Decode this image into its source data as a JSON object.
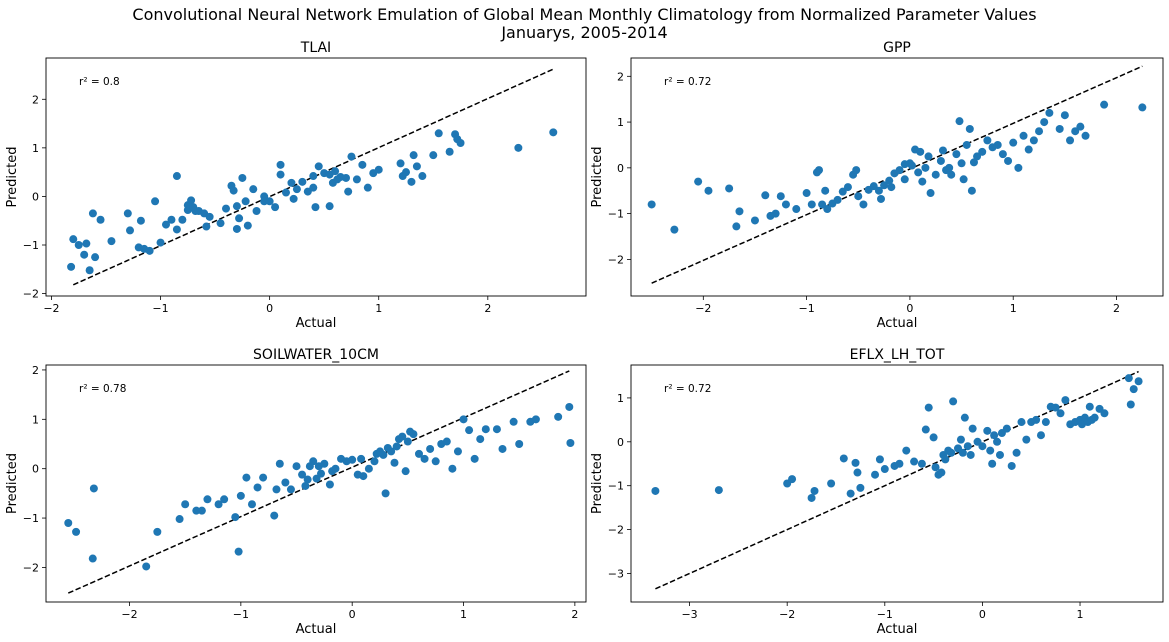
{
  "figure": {
    "title_line1": "Convolutional Neural Network Emulation of Global Mean Monthly Climatology from Normalized Parameter Values",
    "title_line2": "Januarys, 2005-2014"
  },
  "colors": {
    "points": "#1f77b4",
    "reference_line": "#000000"
  },
  "chart_data": [
    {
      "type": "scatter",
      "title": "TLAI",
      "xlabel": "Actual",
      "ylabel": "Predicted",
      "annotation": "r² = 0.8",
      "xlim": [
        -2.05,
        2.9
      ],
      "ylim": [
        -2.05,
        2.85
      ],
      "xticks": [
        -2,
        -1,
        0,
        1,
        2
      ],
      "yticks": [
        -2,
        -1,
        0,
        1,
        2
      ],
      "reference_line": {
        "style": "dashed",
        "from": [
          -1.8,
          -1.82
        ],
        "to": [
          2.6,
          2.62
        ]
      },
      "x": [
        -1.82,
        -1.8,
        -1.75,
        -1.7,
        -1.68,
        -1.65,
        -1.62,
        -1.6,
        -1.55,
        -1.45,
        -1.3,
        -1.28,
        -1.2,
        -1.18,
        -1.15,
        -1.1,
        -1.05,
        -1.0,
        -0.95,
        -0.9,
        -0.85,
        -0.85,
        -0.8,
        -0.75,
        -0.75,
        -0.72,
        -0.7,
        -0.68,
        -0.65,
        -0.6,
        -0.58,
        -0.55,
        -0.45,
        -0.4,
        -0.35,
        -0.33,
        -0.3,
        -0.3,
        -0.28,
        -0.25,
        -0.22,
        -0.2,
        -0.15,
        -0.12,
        -0.05,
        -0.05,
        0.0,
        0.05,
        0.1,
        0.1,
        0.15,
        0.2,
        0.22,
        0.25,
        0.3,
        0.35,
        0.4,
        0.4,
        0.42,
        0.45,
        0.5,
        0.55,
        0.55,
        0.58,
        0.6,
        0.62,
        0.65,
        0.7,
        0.72,
        0.75,
        0.8,
        0.85,
        0.9,
        0.95,
        1.0,
        1.2,
        1.22,
        1.25,
        1.3,
        1.32,
        1.35,
        1.4,
        1.5,
        1.55,
        1.65,
        1.7,
        1.72,
        1.75,
        2.28,
        2.6
      ],
      "y": [
        -1.45,
        -0.88,
        -1.0,
        -1.2,
        -0.97,
        -1.52,
        -0.35,
        -1.25,
        -0.48,
        -0.92,
        -0.35,
        -0.7,
        -1.05,
        -0.5,
        -1.08,
        -1.12,
        -0.1,
        -0.95,
        -0.58,
        -0.48,
        0.42,
        -0.68,
        -0.48,
        -0.28,
        -0.18,
        -0.08,
        -0.22,
        -0.3,
        -0.3,
        -0.35,
        -0.62,
        -0.42,
        -0.55,
        -0.25,
        0.22,
        0.12,
        -0.67,
        -0.2,
        -0.45,
        0.38,
        -0.1,
        -0.6,
        0.15,
        -0.3,
        0.0,
        -0.1,
        -0.1,
        -0.22,
        0.45,
        0.65,
        0.08,
        0.28,
        -0.05,
        0.15,
        0.3,
        0.1,
        0.18,
        0.42,
        -0.22,
        0.62,
        0.48,
        -0.2,
        0.45,
        0.28,
        0.52,
        0.35,
        0.4,
        0.38,
        0.1,
        0.82,
        0.35,
        0.65,
        0.18,
        0.48,
        0.55,
        0.68,
        0.42,
        0.5,
        0.3,
        0.85,
        0.62,
        0.42,
        0.85,
        1.3,
        0.92,
        1.28,
        1.18,
        1.1,
        1.0,
        1.32
      ]
    },
    {
      "type": "scatter",
      "title": "GPP",
      "xlabel": "Actual",
      "ylabel": "Predicted",
      "annotation": "r² = 0.72",
      "xlim": [
        -2.7,
        2.45
      ],
      "ylim": [
        -2.8,
        2.4
      ],
      "xticks": [
        -2,
        -1,
        0,
        1,
        2
      ],
      "yticks": [
        -2,
        -1,
        0,
        1,
        2
      ],
      "reference_line": {
        "style": "dashed",
        "from": [
          -2.5,
          -2.52
        ],
        "to": [
          2.25,
          2.22
        ]
      },
      "x": [
        -2.5,
        -2.28,
        -2.05,
        -1.95,
        -1.75,
        -1.68,
        -1.65,
        -1.5,
        -1.4,
        -1.35,
        -1.3,
        -1.25,
        -1.2,
        -1.1,
        -1.0,
        -0.95,
        -0.9,
        -0.88,
        -0.85,
        -0.82,
        -0.8,
        -0.75,
        -0.7,
        -0.65,
        -0.6,
        -0.55,
        -0.52,
        -0.5,
        -0.45,
        -0.4,
        -0.35,
        -0.3,
        -0.28,
        -0.25,
        -0.2,
        -0.18,
        -0.15,
        -0.1,
        -0.05,
        -0.05,
        0.0,
        0.02,
        0.05,
        0.08,
        0.1,
        0.12,
        0.15,
        0.18,
        0.2,
        0.25,
        0.3,
        0.32,
        0.35,
        0.38,
        0.4,
        0.45,
        0.48,
        0.5,
        0.52,
        0.55,
        0.58,
        0.6,
        0.62,
        0.65,
        0.7,
        0.75,
        0.8,
        0.85,
        0.9,
        0.95,
        1.0,
        1.05,
        1.1,
        1.15,
        1.2,
        1.25,
        1.3,
        1.35,
        1.45,
        1.5,
        1.55,
        1.6,
        1.65,
        1.7,
        1.88,
        2.25
      ],
      "y": [
        -0.8,
        -1.35,
        -0.3,
        -0.5,
        -0.45,
        -1.28,
        -0.95,
        -1.15,
        -0.6,
        -1.05,
        -1.0,
        -0.62,
        -0.8,
        -0.9,
        -0.55,
        -0.8,
        -0.1,
        -0.05,
        -0.8,
        -0.5,
        -0.9,
        -0.78,
        -0.7,
        -0.52,
        -0.42,
        -0.15,
        -0.05,
        -0.62,
        -0.8,
        -0.48,
        -0.4,
        -0.5,
        -0.68,
        -0.38,
        -0.28,
        -0.42,
        -0.12,
        -0.05,
        -0.25,
        0.08,
        0.1,
        0.05,
        0.4,
        -0.1,
        0.35,
        -0.3,
        0.0,
        0.25,
        -0.55,
        -0.15,
        0.15,
        0.38,
        -0.05,
        0.0,
        -0.15,
        0.3,
        1.02,
        0.1,
        -0.25,
        0.5,
        0.85,
        -0.5,
        0.12,
        0.25,
        0.35,
        0.6,
        0.45,
        0.5,
        0.3,
        0.15,
        0.55,
        0.0,
        0.7,
        0.4,
        0.6,
        0.8,
        1.0,
        1.2,
        0.85,
        1.15,
        0.6,
        0.8,
        0.9,
        0.7,
        1.38,
        1.32
      ]
    },
    {
      "type": "scatter",
      "title": "SOILWATER_10CM",
      "xlabel": "Actual",
      "ylabel": "Predicted",
      "annotation": "r² = 0.78",
      "xlim": [
        -2.75,
        2.1
      ],
      "ylim": [
        -2.7,
        2.1
      ],
      "xticks": [
        -2,
        -1,
        0,
        1,
        2
      ],
      "yticks": [
        -2,
        -1,
        0,
        1,
        2
      ],
      "reference_line": {
        "style": "dashed",
        "from": [
          -2.55,
          -2.52
        ],
        "to": [
          1.95,
          1.98
        ]
      },
      "x": [
        -2.55,
        -2.48,
        -2.33,
        -2.32,
        -1.85,
        -1.75,
        -1.55,
        -1.5,
        -1.4,
        -1.35,
        -1.3,
        -1.2,
        -1.15,
        -1.05,
        -1.02,
        -1.0,
        -0.95,
        -0.9,
        -0.85,
        -0.8,
        -0.7,
        -0.68,
        -0.65,
        -0.6,
        -0.55,
        -0.5,
        -0.45,
        -0.42,
        -0.4,
        -0.38,
        -0.35,
        -0.32,
        -0.3,
        -0.28,
        -0.25,
        -0.2,
        -0.18,
        -0.15,
        -0.1,
        -0.05,
        0.0,
        0.05,
        0.08,
        0.1,
        0.15,
        0.2,
        0.22,
        0.25,
        0.28,
        0.3,
        0.32,
        0.35,
        0.38,
        0.4,
        0.42,
        0.45,
        0.48,
        0.5,
        0.52,
        0.55,
        0.6,
        0.65,
        0.7,
        0.75,
        0.8,
        0.85,
        0.9,
        0.95,
        1.0,
        1.05,
        1.1,
        1.15,
        1.2,
        1.3,
        1.35,
        1.45,
        1.5,
        1.6,
        1.65,
        1.85,
        1.95,
        1.96
      ],
      "y": [
        -1.1,
        -1.28,
        -1.82,
        -0.4,
        -1.98,
        -1.28,
        -1.02,
        -0.72,
        -0.85,
        -0.85,
        -0.62,
        -0.72,
        -0.62,
        -0.98,
        -1.68,
        -0.55,
        -0.18,
        -0.72,
        -0.38,
        -0.18,
        -0.95,
        -0.42,
        0.1,
        -0.28,
        -0.42,
        0.05,
        -0.12,
        -0.35,
        -0.22,
        0.05,
        0.15,
        -0.2,
        0.05,
        -0.1,
        0.1,
        -0.32,
        -0.05,
        0.0,
        0.2,
        0.15,
        0.18,
        -0.12,
        0.2,
        -0.15,
        0.0,
        0.15,
        0.3,
        0.35,
        0.28,
        -0.5,
        0.42,
        0.35,
        0.12,
        0.45,
        0.6,
        0.65,
        -0.05,
        0.55,
        0.75,
        0.7,
        0.3,
        0.2,
        0.4,
        0.15,
        0.5,
        0.55,
        0.0,
        0.35,
        1.0,
        0.78,
        0.2,
        0.6,
        0.8,
        0.8,
        0.4,
        0.95,
        0.5,
        0.95,
        1.0,
        1.05,
        1.25,
        0.52
      ]
    },
    {
      "type": "scatter",
      "title": "EFLX_LH_TOT",
      "xlabel": "Actual",
      "ylabel": "Predicted",
      "annotation": "r² = 0.72",
      "xlim": [
        -3.6,
        1.85
      ],
      "ylim": [
        -3.65,
        1.75
      ],
      "xticks": [
        -3,
        -2,
        -1,
        0,
        1
      ],
      "yticks": [
        -3,
        -2,
        -1,
        0,
        1
      ],
      "reference_line": {
        "style": "dashed",
        "from": [
          -3.35,
          -3.35
        ],
        "to": [
          1.6,
          1.6
        ]
      },
      "x": [
        -3.35,
        -2.7,
        -2.0,
        -1.95,
        -1.75,
        -1.72,
        -1.55,
        -1.42,
        -1.35,
        -1.3,
        -1.28,
        -1.25,
        -1.1,
        -1.05,
        -1.0,
        -0.9,
        -0.85,
        -0.78,
        -0.7,
        -0.62,
        -0.58,
        -0.55,
        -0.5,
        -0.48,
        -0.45,
        -0.42,
        -0.4,
        -0.38,
        -0.35,
        -0.32,
        -0.3,
        -0.25,
        -0.22,
        -0.2,
        -0.18,
        -0.15,
        -0.12,
        -0.1,
        -0.05,
        0.0,
        0.05,
        0.08,
        0.1,
        0.12,
        0.15,
        0.18,
        0.2,
        0.25,
        0.3,
        0.35,
        0.4,
        0.45,
        0.5,
        0.55,
        0.6,
        0.65,
        0.7,
        0.75,
        0.8,
        0.85,
        0.9,
        0.95,
        1.0,
        1.02,
        1.05,
        1.08,
        1.1,
        1.12,
        1.15,
        1.2,
        1.25,
        1.5,
        1.52,
        1.55,
        1.6
      ],
      "y": [
        -1.12,
        -1.1,
        -0.95,
        -0.85,
        -1.28,
        -1.12,
        -0.95,
        -0.38,
        -1.18,
        -0.48,
        -0.7,
        -1.05,
        -0.75,
        -0.4,
        -0.62,
        -0.55,
        -0.5,
        -0.2,
        -0.45,
        -0.5,
        0.28,
        0.78,
        0.1,
        -0.58,
        -0.75,
        -0.7,
        -0.3,
        -0.4,
        -0.2,
        -0.25,
        0.92,
        -0.15,
        0.05,
        -0.25,
        0.55,
        -0.1,
        -0.3,
        0.3,
        0.0,
        -0.1,
        0.25,
        -0.2,
        -0.5,
        0.15,
        0.0,
        -0.3,
        0.2,
        0.3,
        -0.55,
        -0.25,
        0.45,
        0.05,
        0.45,
        0.5,
        0.15,
        0.45,
        0.8,
        0.78,
        0.65,
        0.95,
        0.4,
        0.45,
        0.5,
        0.4,
        0.55,
        0.45,
        0.8,
        0.5,
        0.55,
        0.75,
        0.65,
        1.45,
        0.85,
        1.2,
        1.38
      ]
    }
  ]
}
